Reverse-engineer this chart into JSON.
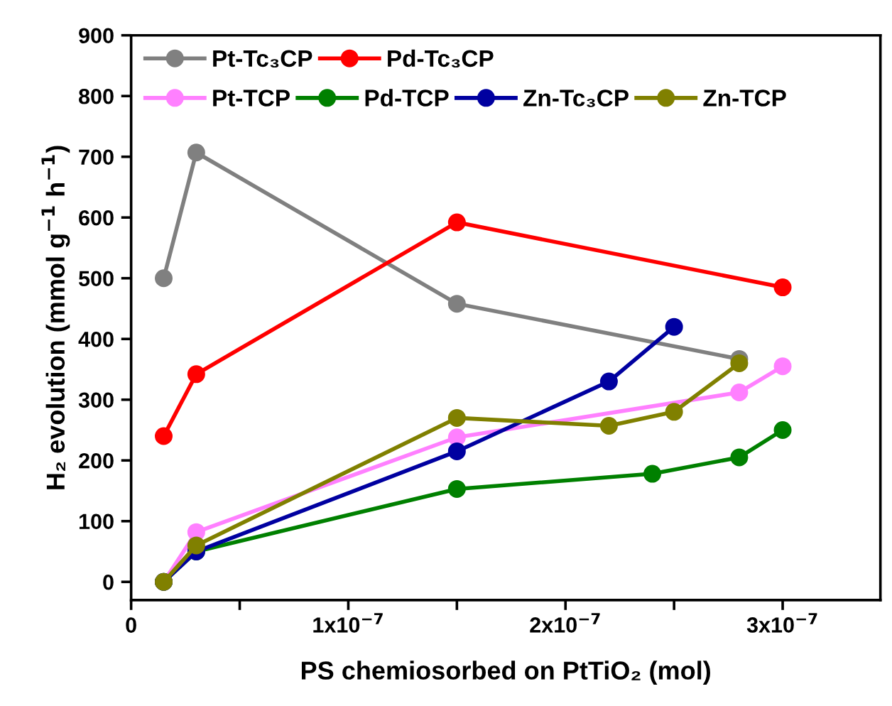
{
  "chart_data": {
    "type": "line",
    "xlabel": "PS chemiosorbed on PtTiO₂ (mol)",
    "ylabel": "H₂ evolution (mmol g$^{−1}$ h$^{−1}$)",
    "xlim": [
      0,
      3.45e-07
    ],
    "ylim": [
      -30,
      900
    ],
    "xticks": [
      {
        "value": 0,
        "label": "0"
      },
      {
        "value": 5e-08,
        "label": null
      },
      {
        "value": 1e-07,
        "label": "1x10$^{−7}$"
      },
      {
        "value": 1.5e-07,
        "label": null
      },
      {
        "value": 2e-07,
        "label": "2x10$^{−7}$"
      },
      {
        "value": 2.5e-07,
        "label": null
      },
      {
        "value": 3e-07,
        "label": "3x10$^{−7}$"
      }
    ],
    "yticks": [
      0,
      100,
      200,
      300,
      400,
      500,
      600,
      700,
      800,
      900
    ],
    "marker": "circle",
    "legend": "top left",
    "grid": false,
    "series": [
      {
        "name": "Pt-Tc₃CP",
        "color": "#808080",
        "x": [
          1.5e-08,
          3e-08,
          1.5e-07,
          2.8e-07
        ],
        "values": [
          500,
          707,
          458,
          367
        ]
      },
      {
        "name": "Pd-Tc₃CP",
        "color": "#ff0000",
        "x": [
          1.5e-08,
          3e-08,
          1.5e-07,
          3e-07
        ],
        "values": [
          240,
          342,
          592,
          485
        ]
      },
      {
        "name": "Pt-TCP",
        "color": "#ff80ff",
        "x": [
          1.5e-08,
          3e-08,
          1.5e-07,
          2.8e-07,
          3e-07
        ],
        "values": [
          0,
          82,
          238,
          312,
          355
        ]
      },
      {
        "name": "Pd-TCP",
        "color": "#008000",
        "x": [
          1.5e-08,
          3e-08,
          1.5e-07,
          2.4e-07,
          2.8e-07,
          3e-07
        ],
        "values": [
          0,
          50,
          153,
          178,
          205,
          250
        ]
      },
      {
        "name": "Zn-Tc₃CP",
        "color": "#0000a0",
        "x": [
          1.5e-08,
          3e-08,
          1.5e-07,
          2.2e-07,
          2.5e-07
        ],
        "values": [
          0,
          50,
          215,
          330,
          420
        ]
      },
      {
        "name": "Zn-TCP",
        "color": "#808000",
        "x": [
          1.5e-08,
          3e-08,
          1.5e-07,
          2.2e-07,
          2.5e-07,
          2.8e-07
        ],
        "values": [
          0,
          60,
          270,
          257,
          280,
          360
        ]
      }
    ]
  }
}
